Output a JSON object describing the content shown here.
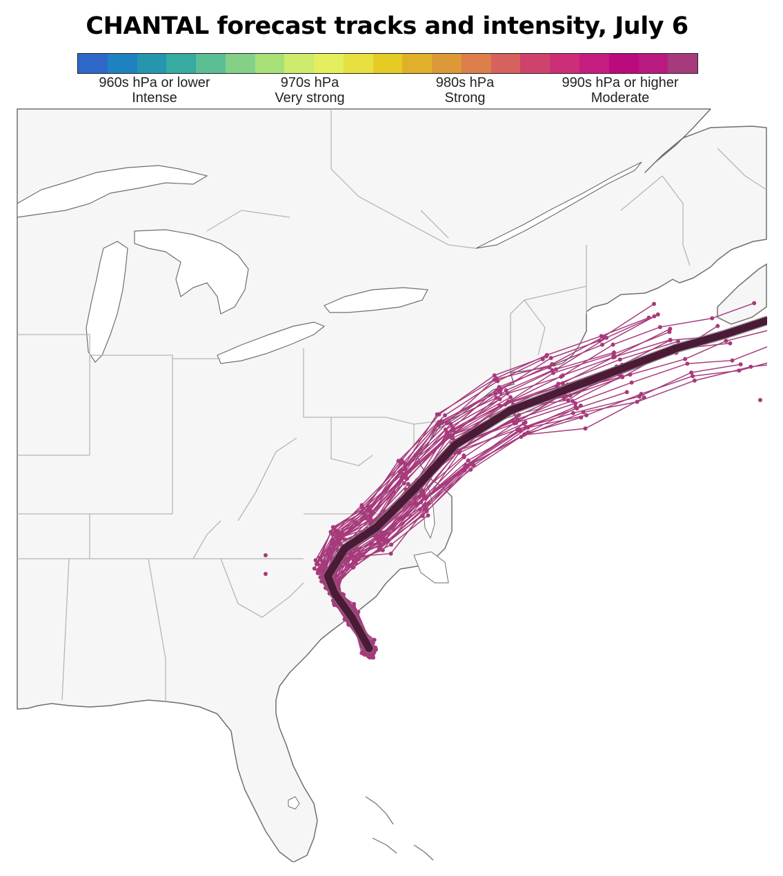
{
  "title": "CHANTAL forecast tracks and intensity, July 6",
  "colorbar": {
    "colors": [
      "#2e68c8",
      "#1f82c0",
      "#2596ae",
      "#37aba1",
      "#5bbe94",
      "#84d086",
      "#a8e078",
      "#cdeb6c",
      "#e3ef5c",
      "#e8e041",
      "#e6cb25",
      "#e1b02a",
      "#dd9938",
      "#dc7f4a",
      "#d7615c",
      "#cf426c",
      "#cc2e77",
      "#c51c80",
      "#bb0a7e",
      "#b81a80",
      "#a63a7b"
    ],
    "labels": [
      {
        "line1": "960s hPa or lower",
        "line2": "Intense"
      },
      {
        "line1": "970s hPa",
        "line2": "Very strong"
      },
      {
        "line1": "980s hPa",
        "line2": "Strong"
      },
      {
        "line1": "990s hPa or higher",
        "line2": "Moderate"
      }
    ]
  },
  "map": {
    "land_color": "#f6f6f6",
    "water_color": "#ffffff",
    "border_color": "#b5b5b5",
    "coast_color": "#6e6e6e",
    "track_color": "#a63a7b",
    "mean_track_color": "#4b1a36"
  }
}
